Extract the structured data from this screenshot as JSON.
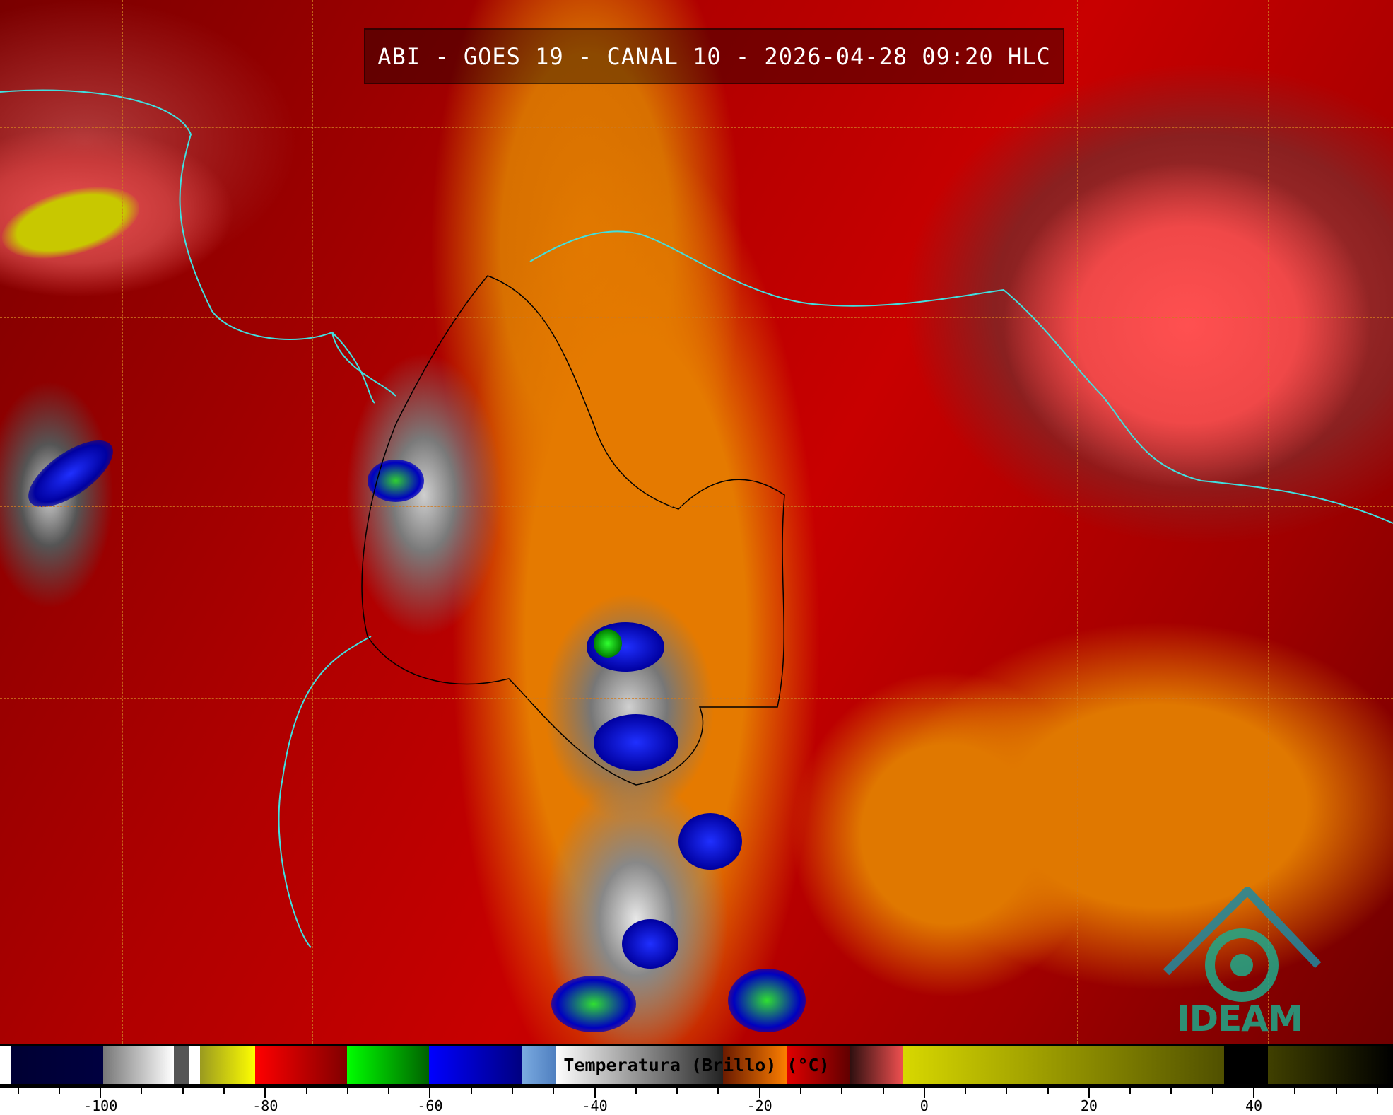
{
  "title": "ABI - GOES 19 - CANAL 10 - 2026-04-28 09:20 HLC",
  "logo_text": "IDEAM",
  "colorbar": {
    "label": "Temperatura (Brillo) (°C)",
    "range": [
      -112.2,
      56.9
    ],
    "major_ticks": [
      -100,
      -80,
      -60,
      -40,
      -20,
      0,
      20,
      40
    ],
    "minor_tick_step": 5,
    "segments": [
      {
        "from": -112.2,
        "to": -110.9,
        "colors": [
          "#ffffff",
          "#ffffff"
        ]
      },
      {
        "from": -110.9,
        "to": -99.7,
        "colors": [
          "#000033",
          "#000040"
        ]
      },
      {
        "from": -99.7,
        "to": -91.1,
        "colors": [
          "#777777",
          "#ffffff"
        ]
      },
      {
        "from": -91.1,
        "to": -89.3,
        "colors": [
          "#555555",
          "#555555"
        ]
      },
      {
        "from": -89.3,
        "to": -87.9,
        "colors": [
          "#ffffff",
          "#ffffff"
        ]
      },
      {
        "from": -87.9,
        "to": -81.2,
        "colors": [
          "#9a9a20",
          "#ffff00"
        ]
      },
      {
        "from": -81.2,
        "to": -70.1,
        "colors": [
          "#ff0000",
          "#800000"
        ]
      },
      {
        "from": -70.1,
        "to": -60.1,
        "colors": [
          "#00ff00",
          "#006000"
        ]
      },
      {
        "from": -60.1,
        "to": -48.8,
        "colors": [
          "#0000ff",
          "#000080"
        ]
      },
      {
        "from": -48.8,
        "to": -44.8,
        "colors": [
          "#7aaae0",
          "#5080c0"
        ]
      },
      {
        "from": -44.8,
        "to": -24.4,
        "colors": [
          "#ffffff",
          "#222222"
        ]
      },
      {
        "from": -24.4,
        "to": -16.6,
        "colors": [
          "#6a1a00",
          "#ff8000"
        ]
      },
      {
        "from": -16.6,
        "to": -9.0,
        "colors": [
          "#e00000",
          "#600000"
        ]
      },
      {
        "from": -9.0,
        "to": -2.6,
        "colors": [
          "#301010",
          "#f05050"
        ]
      },
      {
        "from": -2.6,
        "to": 36.4,
        "colors": [
          "#d8d800",
          "#505000"
        ]
      },
      {
        "from": 36.4,
        "to": 41.7,
        "colors": [
          "#000000",
          "#000000"
        ]
      },
      {
        "from": 41.7,
        "to": 56.9,
        "colors": [
          "#404000",
          "#000000"
        ]
      }
    ]
  },
  "colors": {
    "coastline": "#40e0e0",
    "grid": "#d07a20",
    "logo": "#1fa98a"
  }
}
